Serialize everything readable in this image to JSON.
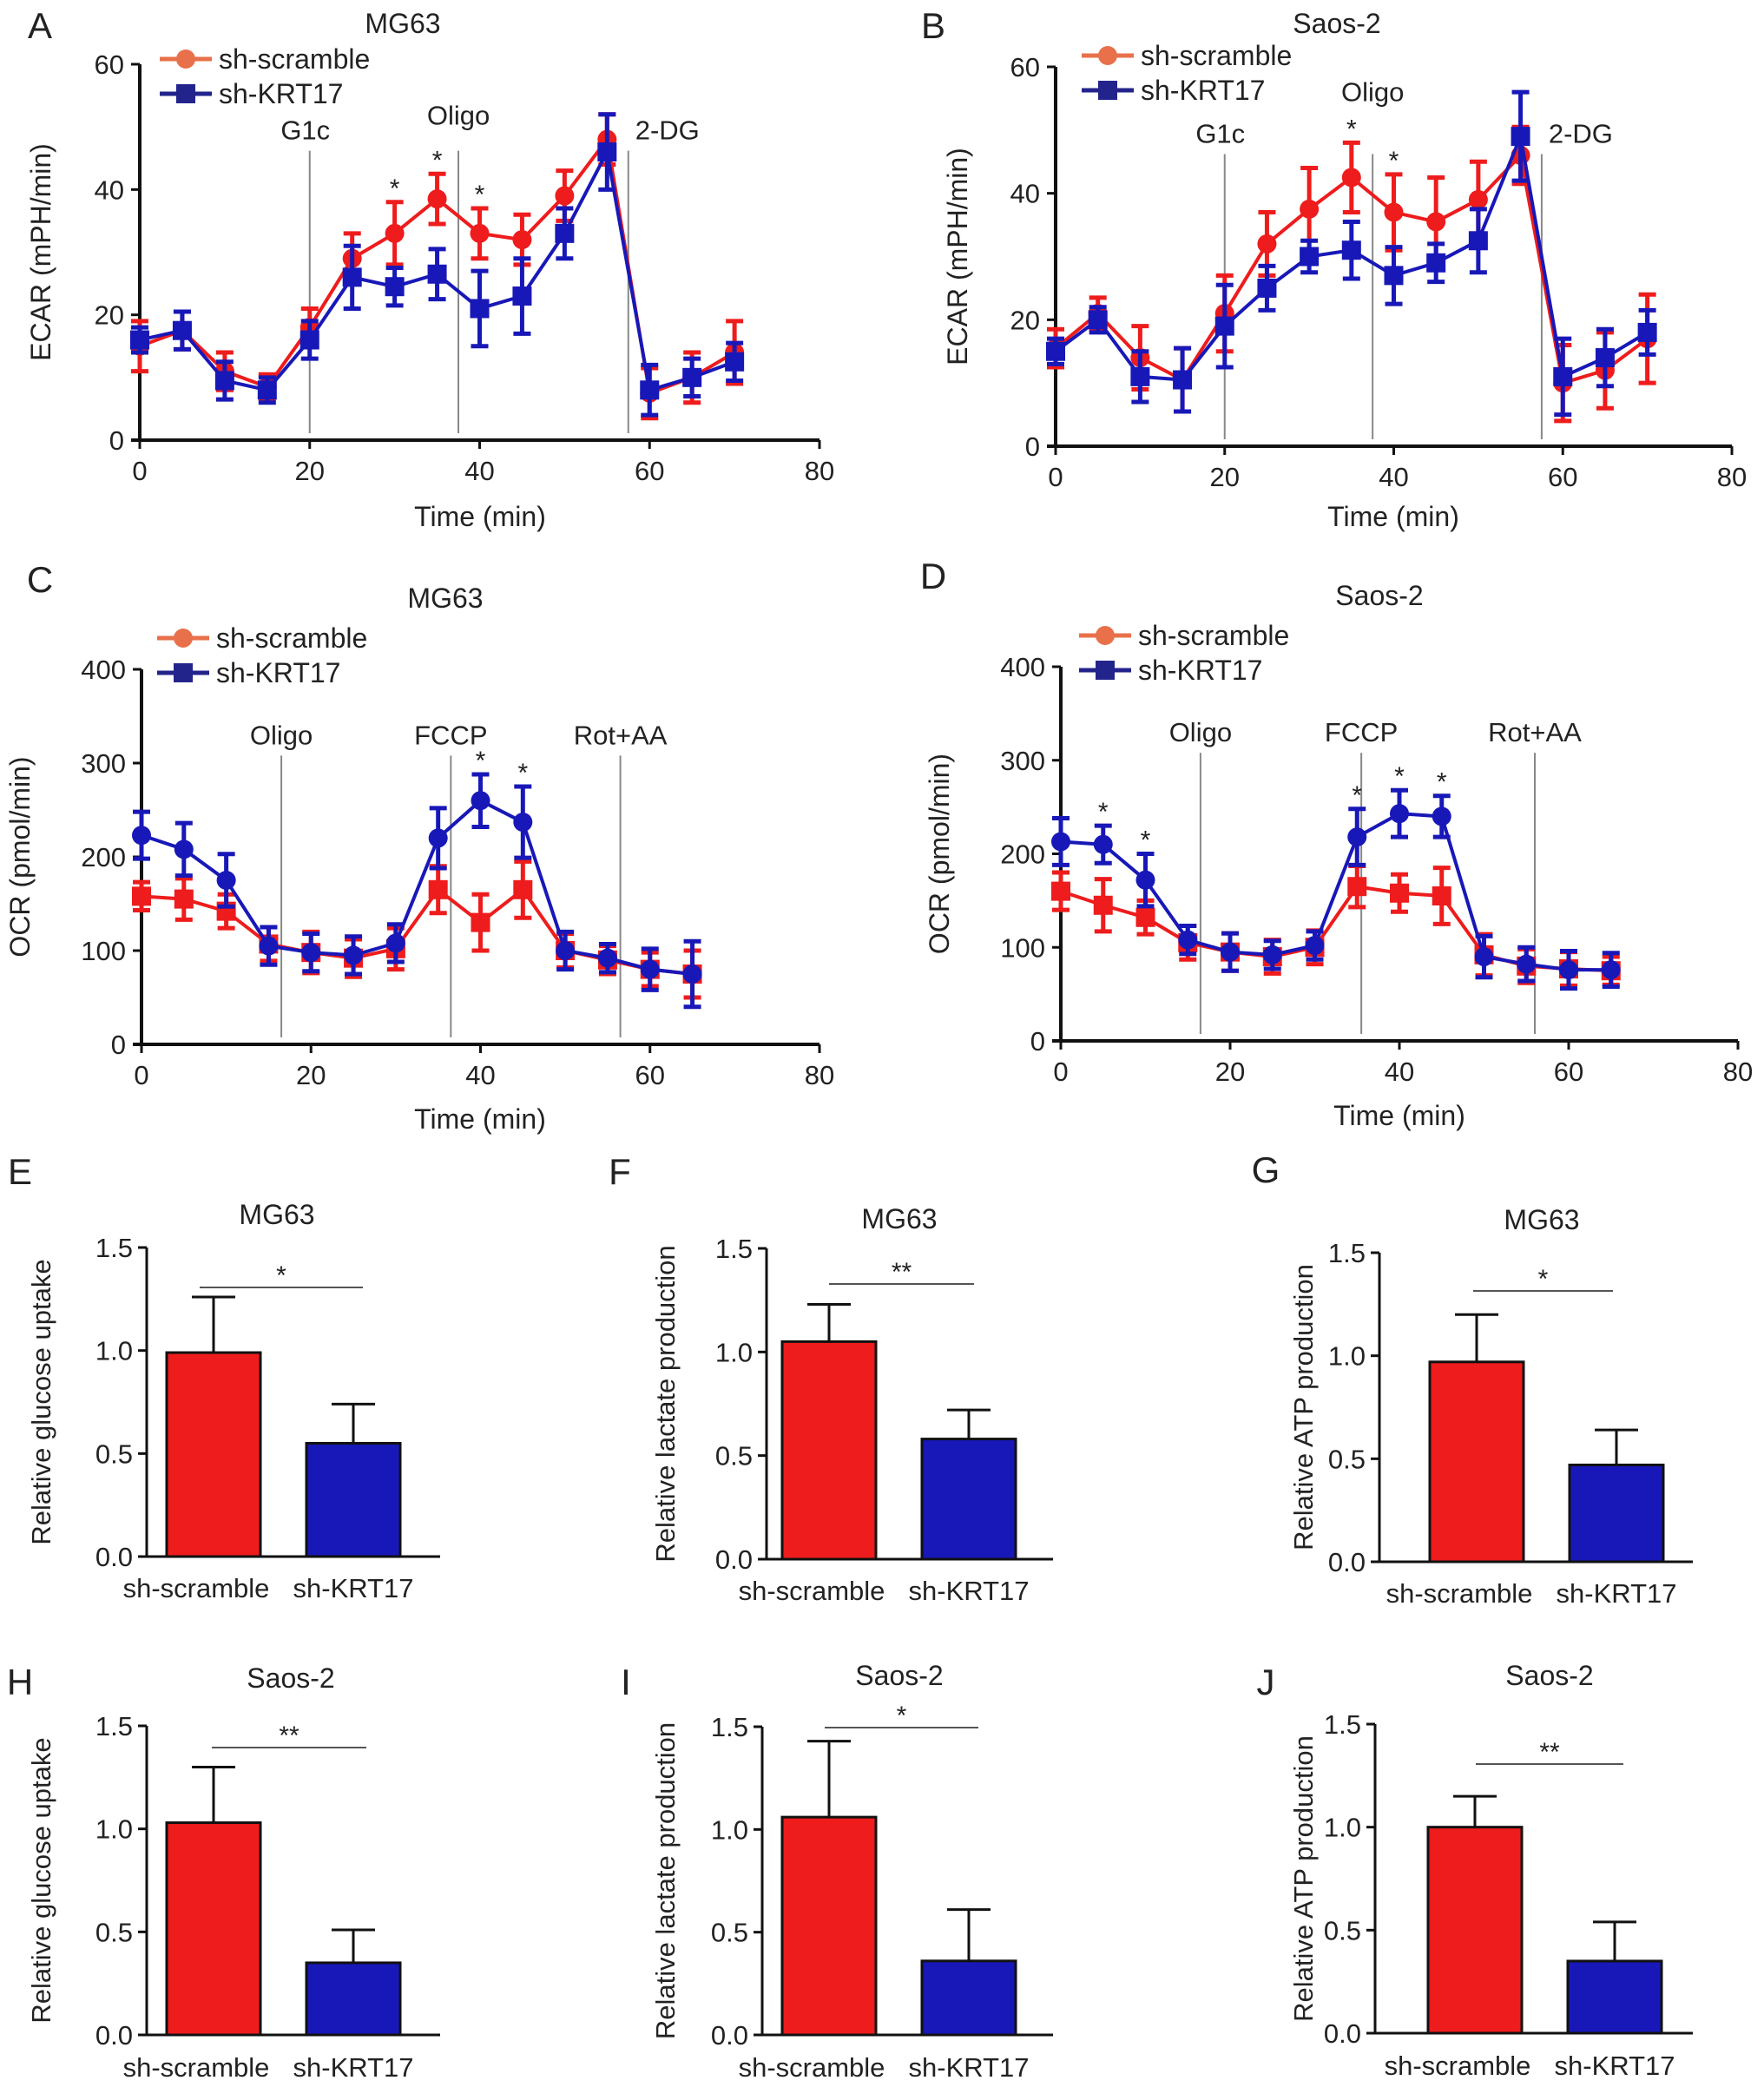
{
  "colors": {
    "sh_scramble": "#ee1c1c",
    "sh_KRT17": "#1818b8",
    "legend_scramble": "#e8704a",
    "legend_KRT17": "#23238c",
    "vline": "#888888"
  },
  "chart_data": [
    {
      "id": "A",
      "panel_label": "A",
      "type": "line",
      "title": "MG63",
      "xlabel": "Time (min)",
      "ylabel": "ECAR (mPH/min)",
      "xlim": [
        0,
        80
      ],
      "ylim": [
        0,
        60
      ],
      "xticks": [
        0,
        20,
        40,
        60,
        80
      ],
      "yticks": [
        0,
        20,
        40,
        60
      ],
      "x": [
        0,
        5,
        10,
        15,
        20,
        25,
        30,
        35,
        40,
        45,
        50,
        55,
        60,
        65,
        70
      ],
      "series": [
        {
          "name": "sh-scramble",
          "marker": "circle",
          "values": [
            15,
            17.5,
            11,
            8.5,
            18,
            29,
            33,
            38.5,
            33,
            32,
            39,
            48,
            7.5,
            10,
            14
          ],
          "errors": [
            4,
            3,
            3,
            2,
            3,
            4,
            5,
            4,
            4,
            4,
            4,
            4,
            4,
            4,
            5
          ]
        },
        {
          "name": "sh-KRT17",
          "marker": "square",
          "values": [
            16,
            17.5,
            9.5,
            8,
            16,
            26,
            24.5,
            26.5,
            21,
            23,
            33,
            46,
            8,
            10,
            12.5
          ],
          "errors": [
            2,
            3,
            3,
            2,
            3,
            5,
            3,
            4,
            6,
            6,
            4,
            6,
            4,
            3,
            3
          ]
        }
      ],
      "injections": [
        {
          "label": "G1c",
          "x": 20
        },
        {
          "label": "Oligo",
          "x": 37.5
        },
        {
          "label": "2-DG",
          "x": 57.5
        }
      ],
      "significance": [
        {
          "x": 30,
          "label": "*"
        },
        {
          "x": 35,
          "label": "*"
        },
        {
          "x": 40,
          "label": "*"
        }
      ],
      "legend": "top-left"
    },
    {
      "id": "B",
      "panel_label": "B",
      "type": "line",
      "title": "Saos-2",
      "xlabel": "Time (min)",
      "ylabel": "ECAR (mPH/min)",
      "xlim": [
        0,
        80
      ],
      "ylim": [
        0,
        60
      ],
      "xticks": [
        0,
        20,
        40,
        60,
        80
      ],
      "yticks": [
        0,
        20,
        40,
        60
      ],
      "x": [
        0,
        5,
        10,
        15,
        20,
        25,
        30,
        35,
        40,
        45,
        50,
        55,
        60,
        65,
        70
      ],
      "series": [
        {
          "name": "sh-scramble",
          "marker": "circle",
          "values": [
            15.5,
            21,
            14,
            10.5,
            21,
            32,
            37.5,
            42.5,
            37,
            35.5,
            39,
            46,
            10,
            12,
            17
          ],
          "errors": [
            3,
            2.5,
            5,
            5,
            6,
            5,
            6.5,
            5.5,
            6,
            7,
            6,
            4.5,
            6,
            6,
            7
          ]
        },
        {
          "name": "sh-KRT17",
          "marker": "square",
          "values": [
            15,
            20,
            11,
            10.5,
            19,
            25,
            30,
            31,
            27,
            29,
            32.5,
            49,
            11,
            14,
            18
          ],
          "errors": [
            2,
            2,
            4,
            5,
            6.5,
            3.5,
            2.5,
            4.5,
            4.5,
            3,
            5,
            7,
            6,
            4.5,
            3.5
          ]
        }
      ],
      "injections": [
        {
          "label": "G1c",
          "x": 20
        },
        {
          "label": "Oligo",
          "x": 37.5
        },
        {
          "label": "2-DG",
          "x": 57.5
        }
      ],
      "significance": [
        {
          "x": 35,
          "label": "*"
        },
        {
          "x": 40,
          "label": "*"
        }
      ],
      "legend": "top-left"
    },
    {
      "id": "C",
      "panel_label": "C",
      "type": "line",
      "title": "MG63",
      "xlabel": "Time (min)",
      "ylabel": "OCR (pmol/min)",
      "xlim": [
        0,
        80
      ],
      "ylim": [
        0,
        400
      ],
      "xticks": [
        0,
        20,
        40,
        60,
        80
      ],
      "yticks": [
        0,
        100,
        200,
        300,
        400
      ],
      "x": [
        0,
        5,
        10,
        15,
        20,
        25,
        30,
        35,
        40,
        45,
        50,
        55,
        60,
        65
      ],
      "series": [
        {
          "name": "sh-scramble",
          "marker": "square",
          "values": [
            158,
            155,
            142,
            107,
            98,
            92,
            102,
            165,
            130,
            165,
            100,
            90,
            80,
            75
          ],
          "errors": [
            15,
            22,
            18,
            18,
            22,
            20,
            22,
            25,
            30,
            30,
            18,
            15,
            18,
            25
          ]
        },
        {
          "name": "sh-KRT17",
          "marker": "circle",
          "values": [
            223,
            208,
            175,
            105,
            98,
            95,
            108,
            220,
            260,
            237,
            100,
            92,
            80,
            75
          ],
          "errors": [
            25,
            28,
            28,
            20,
            20,
            20,
            20,
            32,
            28,
            38,
            20,
            15,
            22,
            35
          ]
        }
      ],
      "injections": [
        {
          "label": "Oligo",
          "x": 16.5
        },
        {
          "label": "FCCP",
          "x": 36.5
        },
        {
          "label": "Rot+AA",
          "x": 56.5
        }
      ],
      "significance": [
        {
          "x": 40,
          "label": "*"
        },
        {
          "x": 45,
          "label": "*"
        }
      ],
      "legend": "top-left"
    },
    {
      "id": "D",
      "panel_label": "D",
      "type": "line",
      "title": "Saos-2",
      "xlabel": "Time (min)",
      "ylabel": "OCR (pmol/min)",
      "xlim": [
        0,
        80
      ],
      "ylim": [
        0,
        400
      ],
      "xticks": [
        0,
        20,
        40,
        60,
        80
      ],
      "yticks": [
        0,
        100,
        200,
        300,
        400
      ],
      "x": [
        0,
        5,
        10,
        15,
        20,
        25,
        30,
        35,
        40,
        45,
        50,
        55,
        60,
        65
      ],
      "series": [
        {
          "name": "sh-scramble",
          "marker": "square",
          "values": [
            160,
            145,
            132,
            105,
            95,
            90,
            100,
            165,
            158,
            155,
            92,
            80,
            77,
            75
          ],
          "errors": [
            20,
            28,
            18,
            18,
            20,
            18,
            18,
            22,
            20,
            30,
            22,
            18,
            18,
            15
          ]
        },
        {
          "name": "sh-KRT17",
          "marker": "circle",
          "values": [
            213,
            210,
            172,
            108,
            95,
            92,
            102,
            218,
            243,
            240,
            90,
            82,
            76,
            76
          ],
          "errors": [
            25,
            20,
            28,
            15,
            20,
            15,
            15,
            30,
            25,
            22,
            22,
            18,
            20,
            18
          ]
        }
      ],
      "injections": [
        {
          "label": "Oligo",
          "x": 16.5
        },
        {
          "label": "FCCP",
          "x": 35.5
        },
        {
          "label": "Rot+AA",
          "x": 56
        }
      ],
      "significance": [
        {
          "x": 5,
          "label": "*"
        },
        {
          "x": 10,
          "label": "*"
        },
        {
          "x": 35,
          "label": "*"
        },
        {
          "x": 40,
          "label": "*"
        },
        {
          "x": 45,
          "label": "*"
        }
      ],
      "legend": "top-left"
    },
    {
      "id": "E",
      "panel_label": "E",
      "type": "bar",
      "title": "MG63",
      "ylabel": "Relative glucose uptake",
      "ylim": [
        0,
        1.5
      ],
      "yticks": [
        "0.0",
        "0.5",
        "1.0",
        "1.5"
      ],
      "categories": [
        "sh-scramble",
        "sh-KRT17"
      ],
      "values": [
        0.99,
        0.55
      ],
      "errors": [
        0.27,
        0.19
      ],
      "significance": "*"
    },
    {
      "id": "F",
      "panel_label": "F",
      "type": "bar",
      "title": "MG63",
      "ylabel": "Relative lactate production",
      "ylim": [
        0,
        1.5
      ],
      "yticks": [
        "0.0",
        "0.5",
        "1.0",
        "1.5"
      ],
      "categories": [
        "sh-scramble",
        "sh-KRT17"
      ],
      "values": [
        1.05,
        0.58
      ],
      "errors": [
        0.18,
        0.14
      ],
      "significance": "**"
    },
    {
      "id": "G",
      "panel_label": "G",
      "type": "bar",
      "title": "MG63",
      "ylabel": "Relative ATP production",
      "ylim": [
        0,
        1.5
      ],
      "yticks": [
        "0.0",
        "0.5",
        "1.0",
        "1.5"
      ],
      "categories": [
        "sh-scramble",
        "sh-KRT17"
      ],
      "values": [
        0.97,
        0.47
      ],
      "errors": [
        0.23,
        0.17
      ],
      "significance": "*"
    },
    {
      "id": "H",
      "panel_label": "H",
      "type": "bar",
      "title": "Saos-2",
      "ylabel": "Relative glucose uptake",
      "ylim": [
        0,
        1.5
      ],
      "yticks": [
        "0.0",
        "0.5",
        "1.0",
        "1.5"
      ],
      "categories": [
        "sh-scramble",
        "sh-KRT17"
      ],
      "values": [
        1.03,
        0.35
      ],
      "errors": [
        0.27,
        0.16
      ],
      "significance": "**"
    },
    {
      "id": "I",
      "panel_label": "I",
      "type": "bar",
      "title": "Saos-2",
      "ylabel": "Relative lactate production",
      "ylim": [
        0,
        1.5
      ],
      "yticks": [
        "0.0",
        "0.5",
        "1.0",
        "1.5"
      ],
      "categories": [
        "sh-scramble",
        "sh-KRT17"
      ],
      "values": [
        1.06,
        0.36
      ],
      "errors": [
        0.37,
        0.25
      ],
      "significance": "*"
    },
    {
      "id": "J",
      "panel_label": "J",
      "type": "bar",
      "title": "Saos-2",
      "ylabel": "Relative ATP production",
      "ylim": [
        0,
        1.5
      ],
      "yticks": [
        "0.0",
        "0.5",
        "1.0",
        "1.5"
      ],
      "categories": [
        "sh-scramble",
        "sh-KRT17"
      ],
      "values": [
        1.0,
        0.35
      ],
      "errors": [
        0.15,
        0.19
      ],
      "significance": "**"
    }
  ]
}
